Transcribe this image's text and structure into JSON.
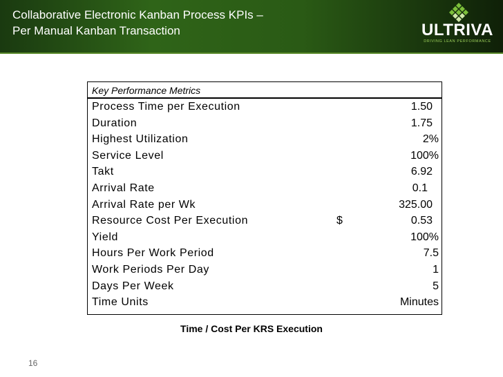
{
  "header": {
    "title_line1": "Collaborative Electronic Kanban Process KPIs –",
    "title_line2": "Per Manual Kanban Transaction",
    "logo_text": "ULTRIVA",
    "logo_tagline": "DRIVING LEAN PERFORMANCE"
  },
  "table": {
    "heading": "Key Performance Metrics",
    "rows": [
      {
        "label": "Process Time per Execution",
        "currency": "",
        "value": "1.50",
        "pad": 9
      },
      {
        "label": "Duration",
        "currency": "",
        "value": "1.75",
        "pad": 9
      },
      {
        "label": "Highest Utilization",
        "currency": "",
        "value": "2%",
        "pad": 0
      },
      {
        "label": "Service Level",
        "currency": "",
        "value": "100%",
        "pad": 0
      },
      {
        "label": "Takt",
        "currency": "",
        "value": "6.92",
        "pad": 9
      },
      {
        "label": "Arrival Rate",
        "currency": "",
        "value": "0.1",
        "pad": 16
      },
      {
        "label": "Arrival Rate per Wk",
        "currency": "",
        "value": "325.00",
        "pad": 9
      },
      {
        "label": "Resource Cost Per Execution",
        "currency": "$",
        "value": "0.53",
        "pad": 9
      },
      {
        "label": "Yield",
        "currency": "",
        "value": "100%",
        "pad": 0
      },
      {
        "label": "Hours Per Work Period",
        "currency": "",
        "value": "7.5",
        "pad": 0
      },
      {
        "label": "Work Periods Per Day",
        "currency": "",
        "value": "1",
        "pad": 0
      },
      {
        "label": "Days Per Week",
        "currency": "",
        "value": "5",
        "pad": 0
      },
      {
        "label": "Time Units",
        "currency": "",
        "value": "Minutes",
        "pad": 0
      }
    ]
  },
  "caption": "Time / Cost Per KRS Execution",
  "page_number": "16"
}
